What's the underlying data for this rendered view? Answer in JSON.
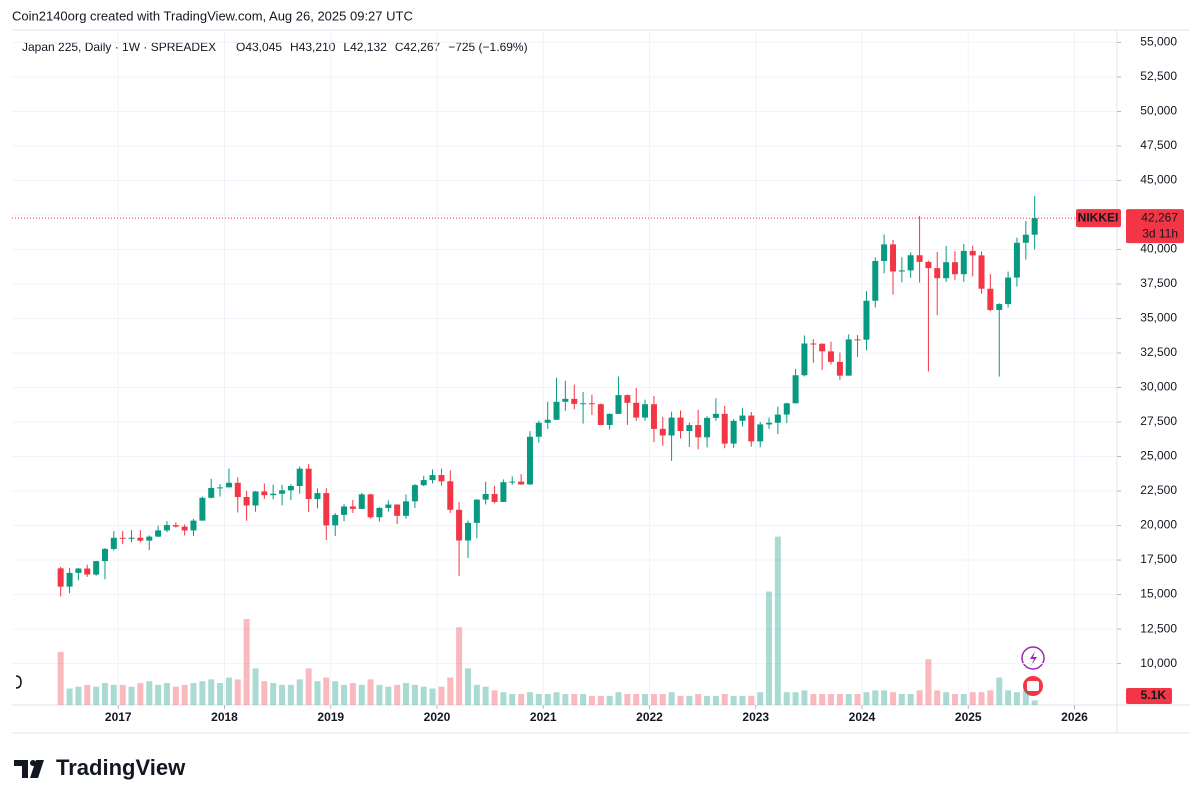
{
  "chart_data": {
    "type": "candlestick",
    "header": "Coin2140org created with TradingView.com, Aug 26, 2025 09:27 UTC",
    "title": "Japan 225, Daily · 1W · SPREADEX",
    "legend_values": [
      "O43,045",
      "H43,210",
      "L42,132",
      "C42,267",
      "−725 (−1.69%)"
    ],
    "symbol_tag": "NIKKEI",
    "last_price": {
      "value": 42267,
      "label": "42,267"
    },
    "countdown": "3d 11h",
    "up_color": "#089981",
    "down_color": "#f23645",
    "xlim": [
      2016.0,
      2026.4
    ],
    "xticks": [
      2017,
      2018,
      2019,
      2020,
      2021,
      2022,
      2023,
      2024,
      2025,
      2026
    ],
    "ylim": [
      7000,
      55900
    ],
    "yticks": [
      {
        "value": 10000,
        "label": "10,000"
      },
      {
        "value": 12500,
        "label": "12,500"
      },
      {
        "value": 15000,
        "label": "15,000"
      },
      {
        "value": 17500,
        "label": "17,500"
      },
      {
        "value": 20000,
        "label": "20,000"
      },
      {
        "value": 22500,
        "label": "22,500"
      },
      {
        "value": 25000,
        "label": "25,000"
      },
      {
        "value": 27500,
        "label": "27,500"
      },
      {
        "value": 30000,
        "label": "30,000"
      },
      {
        "value": 32500,
        "label": "32,500"
      },
      {
        "value": 35000,
        "label": "35,000"
      },
      {
        "value": 37500,
        "label": "37,500"
      },
      {
        "value": 40000,
        "label": "40,000"
      },
      {
        "value": 42500,
        "label": "42,500"
      },
      {
        "value": 45000,
        "label": "45,000"
      },
      {
        "value": 47500,
        "label": "47,500"
      },
      {
        "value": 50000,
        "label": "50,000"
      },
      {
        "value": 52500,
        "label": "52,500"
      },
      {
        "value": 55000,
        "label": "55,000"
      }
    ],
    "grid": true,
    "x": [
      2016.458,
      2016.542,
      2016.625,
      2016.708,
      2016.792,
      2016.875,
      2016.958,
      2017.042,
      2017.125,
      2017.208,
      2017.292,
      2017.375,
      2017.458,
      2017.542,
      2017.625,
      2017.708,
      2017.792,
      2017.875,
      2017.958,
      2018.042,
      2018.125,
      2018.208,
      2018.292,
      2018.375,
      2018.458,
      2018.542,
      2018.625,
      2018.708,
      2018.792,
      2018.875,
      2018.958,
      2019.042,
      2019.125,
      2019.208,
      2019.292,
      2019.375,
      2019.458,
      2019.542,
      2019.625,
      2019.708,
      2019.792,
      2019.875,
      2019.958,
      2020.042,
      2020.125,
      2020.208,
      2020.292,
      2020.375,
      2020.458,
      2020.542,
      2020.625,
      2020.708,
      2020.792,
      2020.875,
      2020.958,
      2021.042,
      2021.125,
      2021.208,
      2021.292,
      2021.375,
      2021.458,
      2021.542,
      2021.625,
      2021.708,
      2021.792,
      2021.875,
      2021.958,
      2022.042,
      2022.125,
      2022.208,
      2022.292,
      2022.375,
      2022.458,
      2022.542,
      2022.625,
      2022.708,
      2022.792,
      2022.875,
      2022.958,
      2023.042,
      2023.125,
      2023.208,
      2023.292,
      2023.375,
      2023.458,
      2023.542,
      2023.625,
      2023.708,
      2023.792,
      2023.875,
      2023.958,
      2024.042,
      2024.125,
      2024.208,
      2024.292,
      2024.375,
      2024.458,
      2024.542,
      2024.625,
      2024.708,
      2024.792,
      2024.875,
      2024.958,
      2025.042,
      2025.125,
      2025.208,
      2025.292,
      2025.375,
      2025.458,
      2025.542,
      2025.625
    ],
    "candles": [
      [
        16900,
        17000,
        14864,
        15576
      ],
      [
        15576,
        16938,
        15095,
        16569
      ],
      [
        16569,
        16918,
        16040,
        16887
      ],
      [
        16887,
        17170,
        16283,
        16450
      ],
      [
        16450,
        17446,
        16361,
        17425
      ],
      [
        17425,
        18374,
        16111,
        18308
      ],
      [
        18308,
        19592,
        18188,
        19114
      ],
      [
        19114,
        19615,
        18650,
        19041
      ],
      [
        19041,
        19668,
        18806,
        19119
      ],
      [
        19119,
        19668,
        18800,
        18909
      ],
      [
        18909,
        19290,
        18224,
        19197
      ],
      [
        19197,
        19998,
        19170,
        19650
      ],
      [
        19650,
        20318,
        19520,
        20033
      ],
      [
        20033,
        20230,
        19850,
        19925
      ],
      [
        19925,
        20080,
        19280,
        19646
      ],
      [
        19646,
        20481,
        19239,
        20356
      ],
      [
        20356,
        22100,
        20356,
        22012
      ],
      [
        22012,
        23382,
        21972,
        22725
      ],
      [
        22725,
        23000,
        22102,
        22765
      ],
      [
        22765,
        24124,
        22765,
        23098
      ],
      [
        23098,
        23486,
        20950,
        22068
      ],
      [
        22068,
        22502,
        20347,
        21454
      ],
      [
        21454,
        22500,
        21000,
        22468
      ],
      [
        22468,
        23050,
        21931,
        22202
      ],
      [
        22202,
        22966,
        21900,
        22305
      ],
      [
        22305,
        22949,
        21462,
        22554
      ],
      [
        22554,
        23000,
        21851,
        22865
      ],
      [
        22865,
        24286,
        22300,
        24120
      ],
      [
        24120,
        24448,
        20971,
        21920
      ],
      [
        21920,
        22698,
        21243,
        22351
      ],
      [
        22351,
        22698,
        18948,
        20015
      ],
      [
        20015,
        20900,
        19241,
        20773
      ],
      [
        20773,
        21556,
        20315,
        21385
      ],
      [
        21385,
        21860,
        20911,
        21206
      ],
      [
        21206,
        22362,
        21200,
        22259
      ],
      [
        22259,
        22307,
        20500,
        20601
      ],
      [
        20601,
        21335,
        20289,
        21276
      ],
      [
        21276,
        21823,
        21003,
        21522
      ],
      [
        21522,
        21540,
        20110,
        20704
      ],
      [
        20704,
        22255,
        20500,
        21756
      ],
      [
        21756,
        23008,
        21276,
        22927
      ],
      [
        22927,
        23608,
        22850,
        23294
      ],
      [
        23294,
        24066,
        23044,
        23657
      ],
      [
        23657,
        24115,
        22892,
        23205
      ],
      [
        23205,
        23995,
        20916,
        21143
      ],
      [
        21143,
        21719,
        16358,
        18917
      ],
      [
        18917,
        20365,
        17646,
        20194
      ],
      [
        20194,
        21916,
        19074,
        21878
      ],
      [
        21878,
        23178,
        21529,
        22288
      ],
      [
        22288,
        22895,
        21600,
        21710
      ],
      [
        21710,
        23338,
        21710,
        23140
      ],
      [
        23140,
        23559,
        22959,
        23185
      ],
      [
        23185,
        23725,
        22948,
        22977
      ],
      [
        22977,
        26834,
        22948,
        26433
      ],
      [
        26433,
        27602,
        26000,
        27444
      ],
      [
        27444,
        28979,
        27002,
        27663
      ],
      [
        27663,
        30714,
        27663,
        28966
      ],
      [
        28966,
        30485,
        28308,
        29179
      ],
      [
        29179,
        30208,
        28426,
        28813
      ],
      [
        28813,
        29685,
        27385,
        28860
      ],
      [
        28860,
        29480,
        28010,
        28792
      ],
      [
        28792,
        28852,
        27272,
        27284
      ],
      [
        27284,
        28139,
        26954,
        28090
      ],
      [
        28090,
        30795,
        28090,
        29453
      ],
      [
        29453,
        29490,
        27293,
        28893
      ],
      [
        28893,
        29960,
        27589,
        27822
      ],
      [
        27822,
        29121,
        27594,
        28792
      ],
      [
        28792,
        29388,
        26044,
        27002
      ],
      [
        27002,
        27880,
        25776,
        26527
      ],
      [
        26527,
        28252,
        24682,
        27821
      ],
      [
        27821,
        28338,
        26304,
        26848
      ],
      [
        26848,
        27458,
        25688,
        27280
      ],
      [
        27280,
        28389,
        25520,
        26393
      ],
      [
        26393,
        27915,
        25661,
        27801
      ],
      [
        27801,
        29222,
        27594,
        28092
      ],
      [
        28092,
        28659,
        25600,
        25937
      ],
      [
        25937,
        27700,
        25621,
        27587
      ],
      [
        27587,
        28502,
        27180,
        27968
      ],
      [
        27968,
        28227,
        25716,
        26095
      ],
      [
        26095,
        27500,
        25662,
        27327
      ],
      [
        27327,
        27821,
        27000,
        27446
      ],
      [
        27446,
        28623,
        26632,
        28041
      ],
      [
        28041,
        28900,
        27427,
        28856
      ],
      [
        28856,
        31352,
        28856,
        30888
      ],
      [
        30888,
        33772,
        30800,
        33189
      ],
      [
        33189,
        33500,
        31791,
        33172
      ],
      [
        33172,
        33200,
        31275,
        32619
      ],
      [
        32619,
        33322,
        31674,
        31858
      ],
      [
        31858,
        32533,
        30538,
        30859
      ],
      [
        30859,
        33853,
        30859,
        33487
      ],
      [
        33487,
        33800,
        32205,
        33464
      ],
      [
        33464,
        36984,
        32693,
        36287
      ],
      [
        36287,
        39426,
        35800,
        39166
      ],
      [
        39166,
        41087,
        38271,
        40369
      ],
      [
        40369,
        40697,
        36733,
        38406
      ],
      [
        38406,
        39437,
        37617,
        38488
      ],
      [
        38488,
        39789,
        37950,
        39583
      ],
      [
        39583,
        42426,
        37611,
        39102
      ],
      [
        39102,
        39188,
        31156,
        38648
      ],
      [
        38648,
        39829,
        35247,
        37920
      ],
      [
        37920,
        40257,
        37651,
        39081
      ],
      [
        39081,
        39884,
        37801,
        38208
      ],
      [
        38208,
        40398,
        37652,
        39895
      ],
      [
        39895,
        40279,
        38055,
        39572
      ],
      [
        39572,
        39865,
        36793,
        37156
      ],
      [
        37156,
        38220,
        35526,
        35617
      ],
      [
        35617,
        36100,
        30793,
        36045
      ],
      [
        36045,
        38400,
        35800,
        37965
      ],
      [
        37965,
        40852,
        37325,
        40487
      ],
      [
        40487,
        42065,
        39260,
        41069
      ],
      [
        41069,
        43876,
        40000,
        42267
      ]
    ],
    "volume": [
      58,
      18,
      20,
      22,
      20,
      24,
      22,
      22,
      20,
      24,
      26,
      22,
      24,
      20,
      22,
      24,
      26,
      28,
      24,
      30,
      28,
      94,
      40,
      26,
      24,
      22,
      22,
      28,
      40,
      26,
      30,
      26,
      22,
      24,
      22,
      28,
      22,
      20,
      22,
      24,
      22,
      20,
      18,
      20,
      30,
      85,
      40,
      22,
      20,
      16,
      14,
      12,
      12,
      14,
      12,
      12,
      14,
      12,
      12,
      12,
      10,
      10,
      10,
      14,
      12,
      12,
      12,
      12,
      12,
      14,
      10,
      10,
      12,
      10,
      10,
      12,
      10,
      10,
      10,
      14,
      124,
      184,
      14,
      14,
      16,
      12,
      12,
      12,
      12,
      12,
      12,
      14,
      16,
      16,
      14,
      12,
      12,
      16,
      50,
      16,
      14,
      12,
      12,
      14,
      14,
      16,
      30,
      16,
      14,
      16,
      5.1
    ],
    "vlim": [
      0,
      200
    ],
    "volume_last_label": "5.1K"
  },
  "footer": {
    "brand": "TradingView"
  }
}
